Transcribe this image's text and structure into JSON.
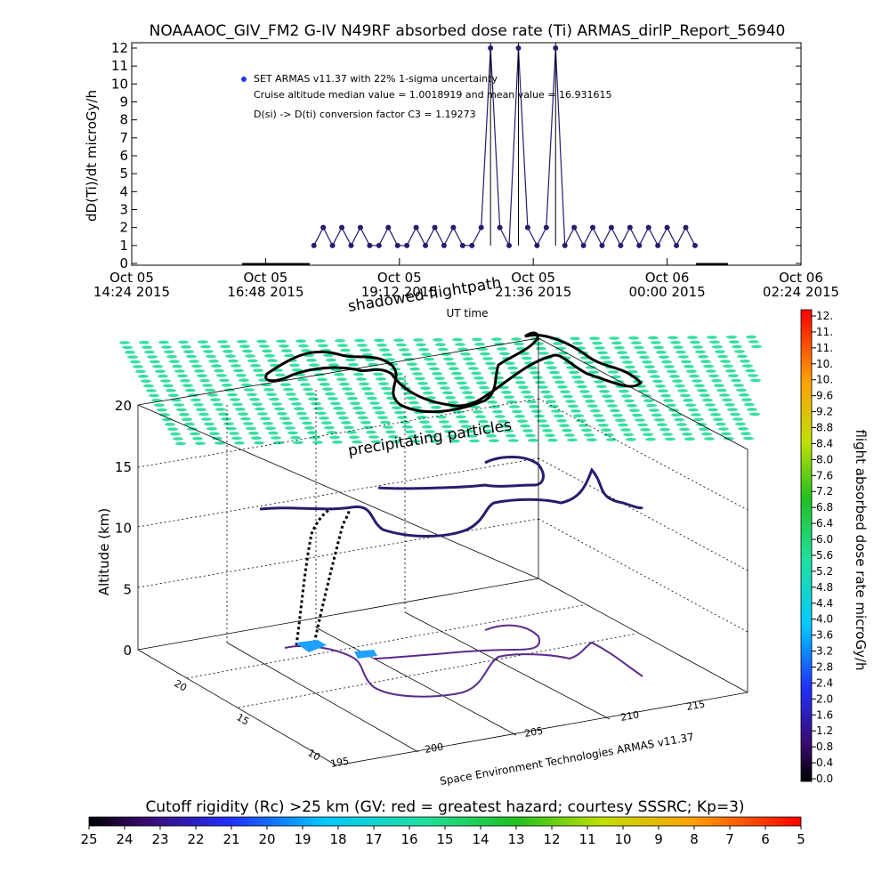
{
  "title": "NOAAAOC_GIV_FM2 G-IV   N49RF  absorbed dose rate (Ti) ARMAS_dirlP_Report_56940",
  "top_panel": {
    "ylabel": "dD(Ti)/dt microGy/h",
    "xlabel": "UT time",
    "legend": {
      "series_label": "SET ARMAS v11.37 with 22% 1-sigma uncertainty",
      "median_text": "Cruise altitude median value = 1.0018919 and mean value = 16.931615",
      "conversion_text": "D(si) -> D(ti) conversion factor C3 = 1.19273"
    },
    "xticks": [
      {
        "l1": "Oct 05",
        "l2": "14:24 2015"
      },
      {
        "l1": "Oct 05",
        "l2": "16:48 2015"
      },
      {
        "l1": "Oct 05",
        "l2": "19:12 2015"
      },
      {
        "l1": "Oct 05",
        "l2": "21:36 2015"
      },
      {
        "l1": "Oct 06",
        "l2": "00:00 2015"
      },
      {
        "l1": "Oct 06",
        "l2": "02:24 2015"
      }
    ]
  },
  "chart_data": [
    {
      "type": "scatter",
      "title": "NOAAAOC_GIV_FM2 G-IV   N49RF  absorbed dose rate (Ti) ARMAS_dirlP_Report_56940",
      "xlabel": "UT time",
      "ylabel": "dD(Ti)/dt microGy/h",
      "ylim": [
        0,
        12
      ],
      "xlim": [
        "2015-10-05 14:24",
        "2015-10-06 02:24"
      ],
      "yticks": [
        0,
        1,
        2,
        3,
        4,
        5,
        6,
        7,
        8,
        9,
        10,
        11,
        12
      ],
      "series": [
        {
          "name": "SET ARMAS v11.37 with 22% 1-sigma uncertainty",
          "color": "#2b1a6e",
          "x": [
            "2015-10-05 17:40",
            "2015-10-05 17:50",
            "2015-10-05 18:00",
            "2015-10-05 18:10",
            "2015-10-05 18:20",
            "2015-10-05 18:30",
            "2015-10-05 18:40",
            "2015-10-05 18:50",
            "2015-10-05 19:00",
            "2015-10-05 19:10",
            "2015-10-05 19:20",
            "2015-10-05 19:30",
            "2015-10-05 19:40",
            "2015-10-05 19:50",
            "2015-10-05 20:00",
            "2015-10-05 20:10",
            "2015-10-05 20:20",
            "2015-10-05 20:30",
            "2015-10-05 20:40",
            "2015-10-05 20:50",
            "2015-10-05 21:00",
            "2015-10-05 21:10",
            "2015-10-05 21:20",
            "2015-10-05 21:30",
            "2015-10-05 21:40",
            "2015-10-05 21:50",
            "2015-10-05 22:00",
            "2015-10-05 22:10",
            "2015-10-05 22:20",
            "2015-10-05 22:30",
            "2015-10-05 22:40",
            "2015-10-05 22:50",
            "2015-10-05 23:00",
            "2015-10-05 23:10",
            "2015-10-05 23:20",
            "2015-10-05 23:30",
            "2015-10-05 23:40",
            "2015-10-05 23:50",
            "2015-10-06 00:00",
            "2015-10-06 00:10",
            "2015-10-06 00:20",
            "2015-10-06 00:30"
          ],
          "y": [
            1,
            2,
            1,
            2,
            1,
            2,
            1,
            1,
            2,
            1,
            1,
            2,
            1,
            2,
            1,
            2,
            1,
            1,
            2,
            12,
            2,
            1,
            12,
            2,
            1,
            2,
            12,
            1,
            2,
            1,
            2,
            1,
            2,
            1,
            2,
            1,
            2,
            1,
            2,
            1,
            2,
            1
          ]
        }
      ]
    },
    {
      "type": "scatter",
      "title": "",
      "zlabel": "Altitude (km)",
      "zlim": [
        0,
        20
      ],
      "zticks": [
        0,
        5,
        10,
        15,
        20
      ],
      "xticks": [
        195,
        200,
        205,
        210,
        215
      ],
      "yticks": [
        10,
        15,
        20
      ],
      "annotations": [
        "shadowed flightpath",
        "precipitating particles"
      ],
      "credit": "Space Environment Technologies ARMAS v11.37"
    }
  ],
  "colorbar_right": {
    "label": "flight absorbed dose rate microGy/h",
    "ticks": [
      "12.",
      "11.",
      "11.",
      "10.",
      "10.",
      "9.6",
      "9.2",
      "8.8",
      "8.4",
      "8.0",
      "7.6",
      "7.2",
      "6.8",
      "6.4",
      "6.0",
      "5.6",
      "5.2",
      "4.8",
      "4.4",
      "4.0",
      "3.6",
      "3.2",
      "2.8",
      "2.4",
      "2.0",
      "1.6",
      "1.2",
      "0.8",
      "0.4",
      "0.0"
    ]
  },
  "colorbar_bottom": {
    "label": "Cutoff rigidity (Rc) >25 km (GV: red = greatest hazard; courtesy SSSRC; Kp=3)",
    "ticks": [
      "25",
      "24",
      "23",
      "22",
      "21",
      "20",
      "19",
      "18",
      "17",
      "16",
      "15",
      "14",
      "13",
      "12",
      "11",
      "10",
      "9",
      "8",
      "7",
      "6",
      "5"
    ]
  },
  "colors": {
    "data": "#2b1a6e",
    "legend_dot": "#1e3cff",
    "particles": "#33e0a0"
  }
}
